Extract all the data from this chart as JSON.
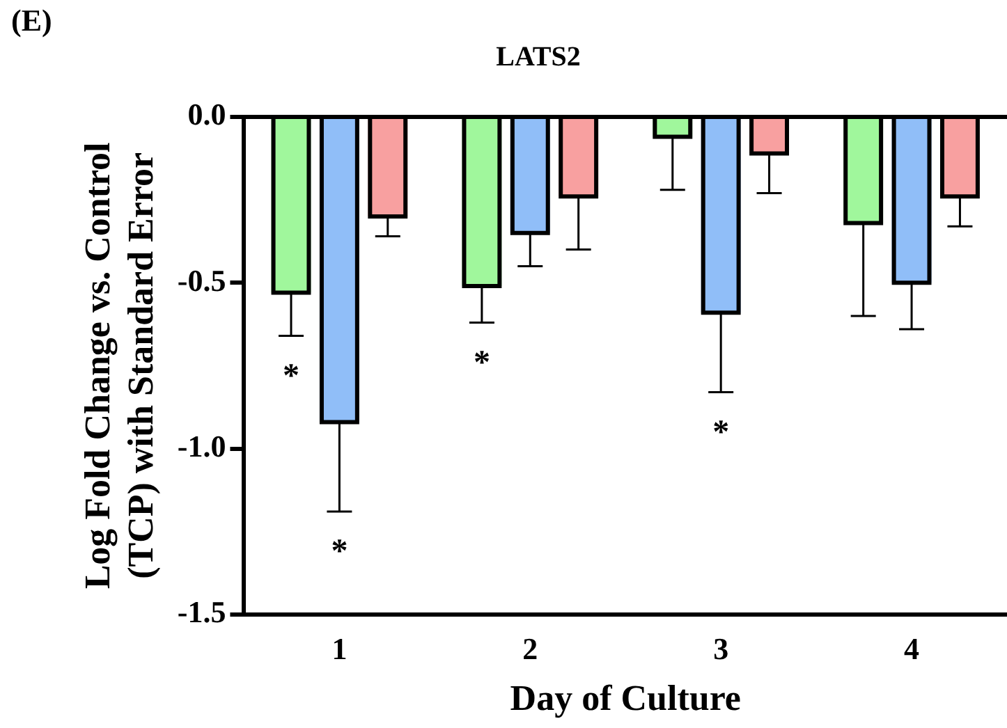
{
  "chart_data": {
    "type": "bar",
    "title": "LATS2",
    "xlabel": "Day of Culture",
    "ylabel": "Log Fold Change vs. Control\n(TCP) with Standard Error",
    "categories": [
      "1",
      "2",
      "3",
      "4"
    ],
    "series": [
      {
        "color": "#a0f79c",
        "values": [
          -0.53,
          -0.51,
          -0.06,
          -0.32
        ],
        "errors": [
          [
            -0.66,
            -0.53
          ],
          [
            -0.62,
            -0.51
          ],
          [
            -0.22,
            -0.06
          ],
          [
            -0.6,
            -0.32
          ]
        ]
      },
      {
        "color": "#90bef8",
        "values": [
          -0.92,
          -0.35,
          -0.59,
          -0.5
        ],
        "errors": [
          [
            -1.19,
            -0.92
          ],
          [
            -0.45,
            -0.35
          ],
          [
            -0.83,
            -0.59
          ],
          [
            -0.64,
            -0.5
          ]
        ]
      },
      {
        "color": "#f8a0a0",
        "values": [
          -0.3,
          -0.24,
          -0.11,
          -0.24
        ],
        "errors": [
          [
            -0.36,
            -0.3
          ],
          [
            -0.4,
            -0.24
          ],
          [
            -0.23,
            -0.11
          ],
          [
            -0.33,
            -0.24
          ]
        ]
      }
    ],
    "ylim": [
      -1.5,
      0
    ],
    "yticks": [
      {
        "value": 0,
        "label": "0.0"
      },
      {
        "value": -0.5,
        "label": "-0.5"
      },
      {
        "value": -1,
        "label": "-1.0"
      },
      {
        "value": -1.5,
        "label": "-1.5"
      }
    ],
    "grid": false,
    "legend": false,
    "ref_lines": [
      {
        "axis": "y",
        "value": 0
      }
    ],
    "annotations": [
      "(E)",
      "*",
      "*",
      "*",
      "*"
    ]
  }
}
